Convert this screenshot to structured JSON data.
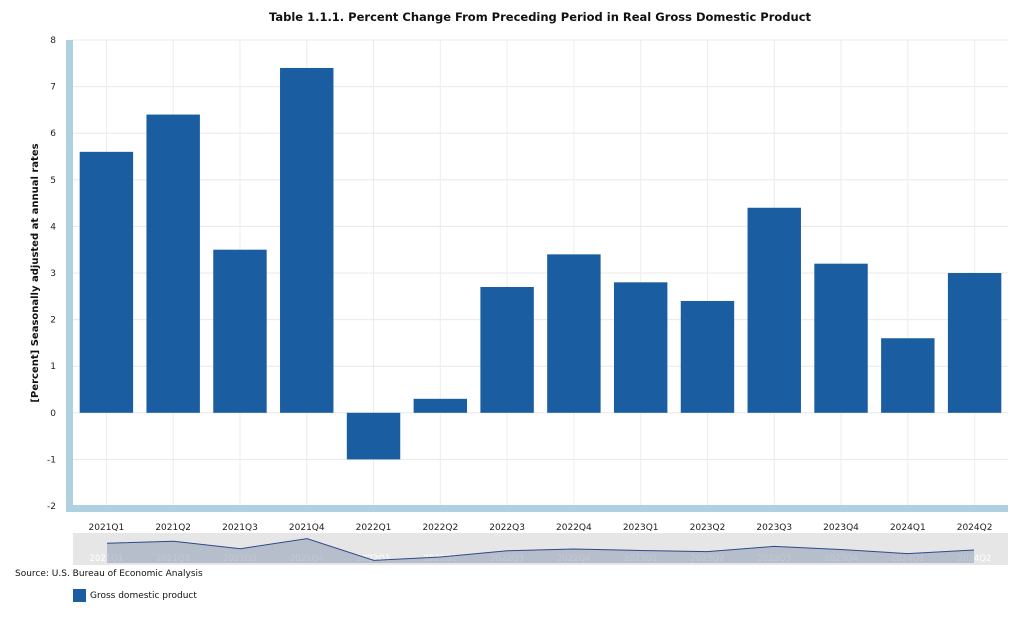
{
  "chart_data": {
    "type": "bar",
    "title": "Table 1.1.1. Percent Change From Preceding Period in Real Gross Domestic Product",
    "xlabel": "",
    "ylabel": "[Percent] Seasonally adjusted at annual rates",
    "categories": [
      "2021Q1",
      "2021Q2",
      "2021Q3",
      "2021Q4",
      "2022Q1",
      "2022Q2",
      "2022Q3",
      "2022Q4",
      "2023Q1",
      "2023Q2",
      "2023Q3",
      "2023Q4",
      "2024Q1",
      "2024Q2"
    ],
    "series": [
      {
        "name": "Gross domestic product",
        "values": [
          5.6,
          6.4,
          3.5,
          7.4,
          -1.0,
          0.3,
          2.7,
          3.4,
          2.8,
          2.4,
          4.4,
          3.2,
          1.6,
          3.0
        ]
      }
    ],
    "ylim": [
      -2,
      8
    ],
    "yticks": [
      "8",
      "7",
      "6",
      "5",
      "4",
      "3",
      "2",
      "1",
      "0",
      "-1",
      "-2"
    ],
    "grid": true,
    "legend_position": "bottom-left",
    "colors": {
      "bar": "#1a5da0",
      "axis": "#add1df",
      "navigator_fill": "#8e9ab5"
    }
  },
  "source": "Source: U.S. Bureau of Economic Analysis",
  "legend": {
    "label": "Gross domestic product"
  }
}
